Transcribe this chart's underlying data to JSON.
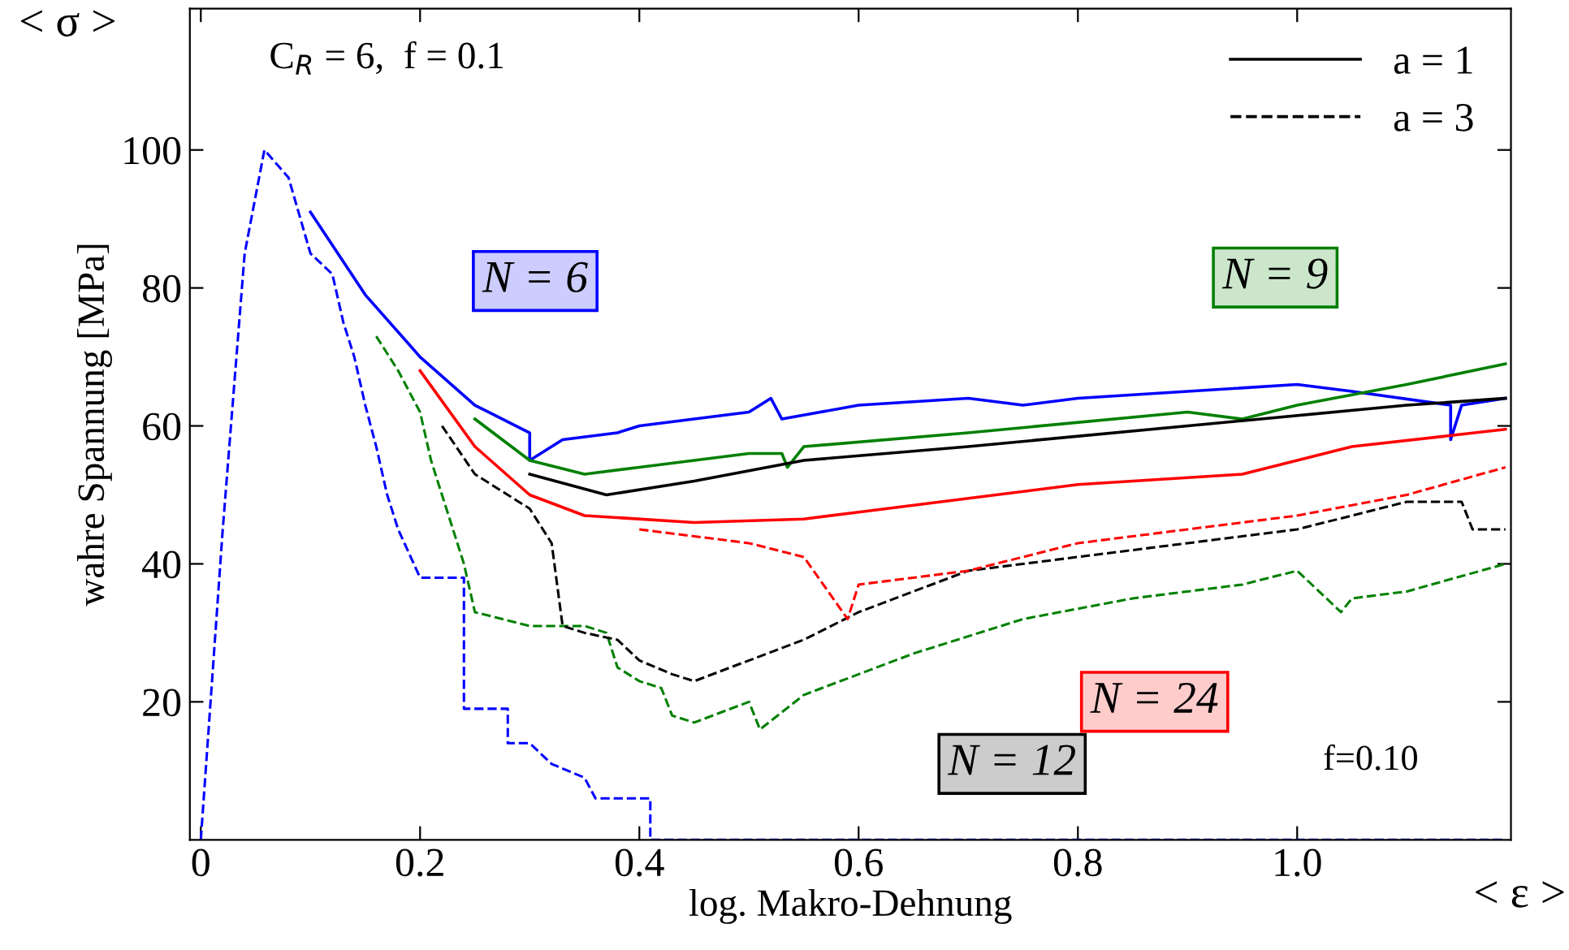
{
  "chart_data": {
    "type": "line",
    "xlabel": "log. Makro-Dehnung",
    "ylabel": "wahre Spannung [MPa]",
    "xlim": [
      -0.01,
      1.195
    ],
    "ylim": [
      0,
      120.5
    ],
    "xticks": [
      0,
      0.2,
      0.4,
      0.6,
      0.8,
      {
        "value": 1.0,
        "label": "1.0"
      }
    ],
    "yticks": [
      20,
      40,
      60,
      80,
      100
    ],
    "grid": false,
    "legend": "top right",
    "marker": "none",
    "annotations": [
      "C$_{R}$ = 6,  f = 0.1",
      "f=0.10",
      "< σ >",
      "< ε >",
      "N = 6",
      "N = 9",
      "N = 12",
      "N = 24"
    ],
    "series": [
      {
        "color": "#0000ff",
        "line_style": "solid",
        "x": [
          0.1,
          0.15,
          0.2,
          0.25,
          0.3,
          0.3,
          0.33,
          0.38,
          0.4,
          0.5,
          0.52,
          0.53,
          0.6,
          0.7,
          0.75,
          0.8,
          0.9,
          1.0,
          1.05,
          1.14,
          1.14,
          1.15,
          1.19
        ],
        "values": [
          91,
          79,
          70,
          63,
          59,
          55,
          58,
          59,
          60,
          62,
          64,
          61,
          63,
          64,
          63,
          64,
          65,
          66,
          65,
          63,
          58,
          63,
          64
        ]
      },
      {
        "color": "#0000ff",
        "line_style": "dashed",
        "x": [
          0,
          0.02,
          0.04,
          0.058,
          0.08,
          0.1,
          0.12,
          0.13,
          0.14,
          0.15,
          0.16,
          0.17,
          0.18,
          0.2,
          0.24,
          0.24,
          0.28,
          0.28,
          0.3,
          0.32,
          0.35,
          0.36,
          0.38,
          0.41,
          0.41,
          1.19
        ],
        "values": [
          0,
          45,
          85,
          100,
          96,
          85,
          82,
          75,
          70,
          63,
          57,
          50,
          45,
          38,
          38,
          19,
          19,
          14,
          14,
          11,
          9,
          6,
          6,
          6,
          0,
          0
        ]
      },
      {
        "color": "#008000",
        "line_style": "solid",
        "x": [
          0.25,
          0.3,
          0.35,
          0.4,
          0.45,
          0.5,
          0.53,
          0.535,
          0.55,
          0.7,
          0.9,
          0.95,
          1.0,
          1.1,
          1.19
        ],
        "values": [
          61,
          55,
          53,
          54,
          55,
          56,
          56,
          54,
          57,
          59,
          62,
          61,
          63,
          66,
          69
        ]
      },
      {
        "color": "#008000",
        "line_style": "dashed",
        "x": [
          0.16,
          0.18,
          0.2,
          0.21,
          0.22,
          0.23,
          0.24,
          0.25,
          0.3,
          0.35,
          0.37,
          0.38,
          0.4,
          0.42,
          0.43,
          0.45,
          0.5,
          0.51,
          0.55,
          0.65,
          0.75,
          0.85,
          0.95,
          1.0,
          1.04,
          1.05,
          1.1,
          1.19
        ],
        "values": [
          73,
          68,
          62,
          55,
          50,
          45,
          40,
          33,
          31,
          31,
          30,
          25,
          23,
          22,
          18,
          17,
          20,
          16,
          21,
          27,
          32,
          35,
          37,
          39,
          33,
          35,
          36,
          40
        ]
      },
      {
        "name": "a = 1",
        "color": "#000000",
        "line_style": "solid",
        "x": [
          0.3,
          0.37,
          0.45,
          0.55,
          0.7,
          0.9,
          1.1,
          1.19
        ],
        "values": [
          53,
          50,
          52,
          55,
          57,
          60,
          63,
          64
        ]
      },
      {
        "name": "a = 3",
        "color": "#000000",
        "line_style": "dashed",
        "x": [
          0.22,
          0.25,
          0.28,
          0.3,
          0.32,
          0.33,
          0.35,
          0.38,
          0.4,
          0.43,
          0.45,
          0.5,
          0.55,
          0.6,
          0.7,
          0.8,
          0.9,
          1.0,
          1.1,
          1.15,
          1.16,
          1.19
        ],
        "values": [
          60,
          53,
          50,
          48,
          43,
          31,
          30,
          29,
          26,
          24,
          23,
          26,
          29,
          33,
          39,
          41,
          43,
          45,
          49,
          49,
          45,
          45
        ]
      },
      {
        "color": "#ff0000",
        "line_style": "solid",
        "x": [
          0.2,
          0.25,
          0.3,
          0.35,
          0.45,
          0.55,
          0.6,
          0.8,
          0.95,
          1.05,
          1.19
        ],
        "values": [
          68,
          57,
          50,
          47,
          46,
          46.5,
          47.5,
          51.5,
          53,
          57,
          59.5
        ]
      },
      {
        "color": "#ff0000",
        "line_style": "dashed",
        "x": [
          0.4,
          0.45,
          0.5,
          0.55,
          0.59,
          0.6,
          0.65,
          0.7,
          0.8,
          0.9,
          1.0,
          1.1,
          1.19
        ],
        "values": [
          45,
          44,
          43,
          41,
          32,
          37,
          38,
          39,
          43,
          45,
          47,
          50,
          54
        ]
      }
    ]
  }
}
